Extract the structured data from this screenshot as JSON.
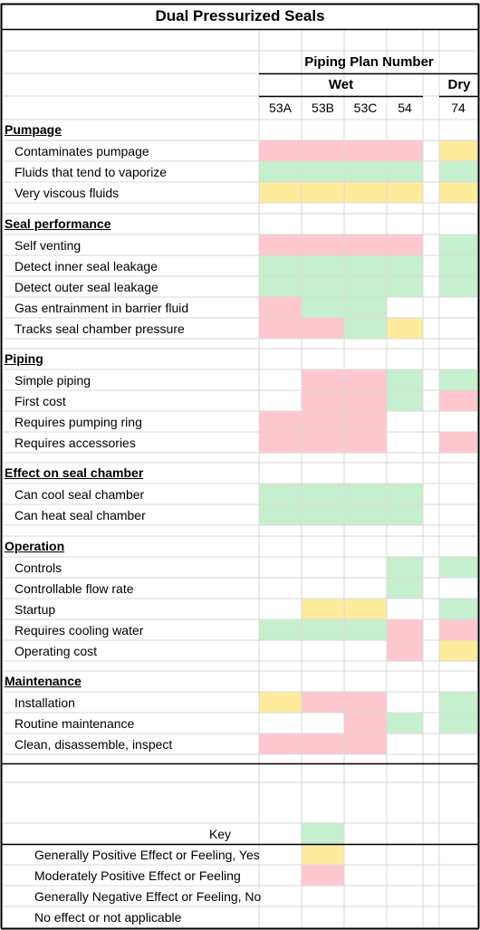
{
  "title": "Dual Pressurized Seals",
  "header": {
    "plan_label": "Piping Plan Number",
    "wet_label": "Wet",
    "dry_label": "Dry",
    "columns": [
      "53A",
      "53B",
      "53C",
      "54",
      "74"
    ]
  },
  "colors": {
    "positive": "#c6efce",
    "moderate": "#ffeb9c",
    "negative": "#ffc7ce",
    "grid": "#d9d9d9",
    "border": "#000000"
  },
  "sections": [
    {
      "title": "Pumpage",
      "rows": [
        {
          "label": "Contaminates pumpage",
          "cells": [
            "R",
            "R",
            "R",
            "R",
            "Y"
          ]
        },
        {
          "label": "Fluids that tend to vaporize",
          "cells": [
            "G",
            "G",
            "G",
            "G",
            "G"
          ]
        },
        {
          "label": "Very viscous fluids",
          "cells": [
            "Y",
            "Y",
            "Y",
            "Y",
            "Y"
          ]
        }
      ]
    },
    {
      "title": "Seal performance",
      "rows": [
        {
          "label": "Self venting",
          "cells": [
            "R",
            "R",
            "R",
            "R",
            "G"
          ]
        },
        {
          "label": "Detect inner seal leakage",
          "cells": [
            "G",
            "G",
            "G",
            "G",
            "G"
          ]
        },
        {
          "label": "Detect outer seal leakage",
          "cells": [
            "G",
            "G",
            "G",
            "G",
            "G"
          ]
        },
        {
          "label": "Gas entrainment in barrier fluid",
          "cells": [
            "R",
            "G",
            "G",
            "",
            ""
          ]
        },
        {
          "label": "Tracks seal chamber pressure",
          "cells": [
            "R",
            "R",
            "G",
            "Y",
            ""
          ]
        }
      ]
    },
    {
      "title": "Piping ",
      "rows": [
        {
          "label": "Simple piping",
          "cells": [
            "",
            "R",
            "R",
            "G",
            "G"
          ]
        },
        {
          "label": "First cost",
          "cells": [
            "",
            "R",
            "R",
            "G",
            "R"
          ]
        },
        {
          "label": "Requires pumping ring",
          "cells": [
            "R",
            "R",
            "R",
            "",
            ""
          ]
        },
        {
          "label": "Requires accessories",
          "cells": [
            "R",
            "R",
            "R",
            "",
            "R"
          ]
        }
      ]
    },
    {
      "title": "Effect on seal chamber",
      "rows": [
        {
          "label": "Can cool seal chamber",
          "cells": [
            "G",
            "G",
            "G",
            "G",
            ""
          ]
        },
        {
          "label": "Can heat seal chamber",
          "cells": [
            "G",
            "G",
            "G",
            "G",
            ""
          ]
        }
      ]
    },
    {
      "title": "Operation",
      "rows": [
        {
          "label": "Controls",
          "cells": [
            "",
            "",
            "",
            "G",
            "G"
          ]
        },
        {
          "label": "Controllable flow rate",
          "cells": [
            "",
            "",
            "",
            "G",
            ""
          ]
        },
        {
          "label": "Startup",
          "cells": [
            "",
            "Y",
            "Y",
            "",
            "G"
          ]
        },
        {
          "label": "Requires cooling water",
          "cells": [
            "G",
            "G",
            "G",
            "R",
            "R"
          ]
        },
        {
          "label": "Operating cost",
          "cells": [
            "",
            "",
            "",
            "R",
            "Y"
          ]
        }
      ]
    },
    {
      "title": "Maintenance",
      "rows": [
        {
          "label": "Installation",
          "cells": [
            "Y",
            "R",
            "R",
            "",
            "G"
          ]
        },
        {
          "label": "Routine maintenance",
          "cells": [
            "",
            "",
            "R",
            "G",
            "G"
          ]
        },
        {
          "label": "Clean, disassemble, inspect",
          "cells": [
            "R",
            "R",
            "R",
            "",
            ""
          ]
        }
      ]
    }
  ],
  "key": {
    "title": "Key",
    "items": [
      {
        "label": "Generally Positive Effect or Feeling, Yes",
        "code": "G"
      },
      {
        "label": "Moderately Positive Effect or Feeling",
        "code": "Y"
      },
      {
        "label": "Generally Negative Effect or Feeling, No",
        "code": "R"
      },
      {
        "label": "No effect or not applicable",
        "code": ""
      }
    ]
  }
}
